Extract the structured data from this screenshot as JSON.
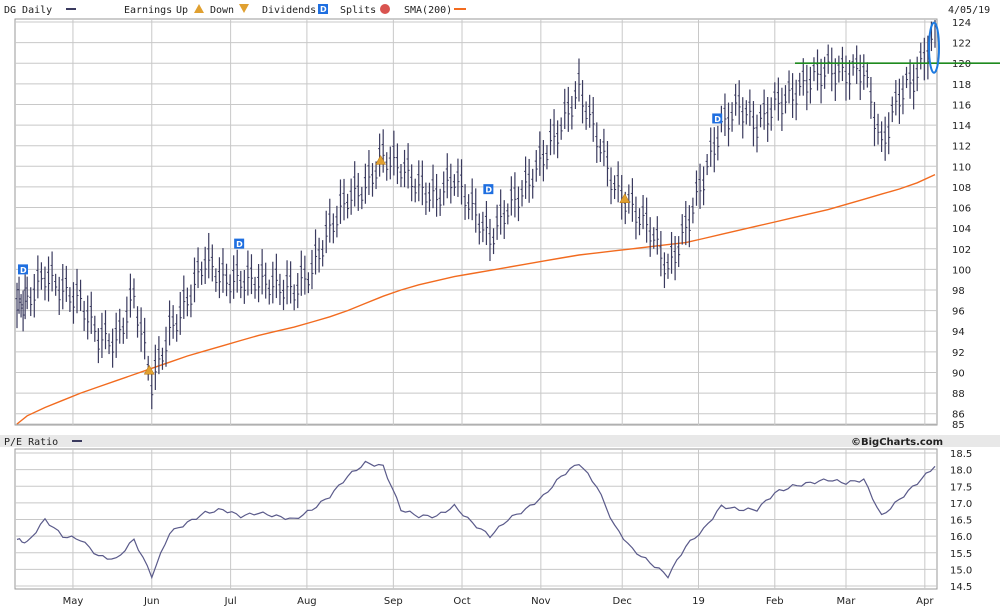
{
  "header": {
    "title": "DG Daily",
    "earnings_label": "Earnings",
    "up_label": "Up",
    "down_label": "Down",
    "dividends_label": "Dividends",
    "splits_label": "Splits",
    "sma_label": "SMA(200)",
    "date": "4/05/19"
  },
  "pe_panel": {
    "title": "P/E Ratio",
    "brand": "©BigCharts.com"
  },
  "colors": {
    "price": "#3a3a5e",
    "sma": "#f26b1f",
    "pe": "#5a5a8a",
    "grid": "#c8c8c8",
    "resistance": "#1f8a1f",
    "highlight": "#1e7ae0",
    "dividend": "#1f6fe0",
    "earnings": "#e0a030",
    "splits": "#d9534f",
    "border": "#999999"
  },
  "chart_data": [
    {
      "type": "ohlc",
      "title": "DG Daily",
      "x": [
        "2018-04-09",
        "2018-04-13",
        "2018-04-20",
        "2018-04-27",
        "2018-05-04",
        "2018-05-11",
        "2018-05-18",
        "2018-05-25",
        "2018-06-01",
        "2018-06-08",
        "2018-06-15",
        "2018-06-22",
        "2018-06-29",
        "2018-07-06",
        "2018-07-13",
        "2018-07-20",
        "2018-07-27",
        "2018-08-03",
        "2018-08-10",
        "2018-08-17",
        "2018-08-24",
        "2018-08-31",
        "2018-09-07",
        "2018-09-14",
        "2018-09-21",
        "2018-09-28",
        "2018-10-05",
        "2018-10-12",
        "2018-10-19",
        "2018-10-26",
        "2018-11-02",
        "2018-11-09",
        "2018-11-16",
        "2018-11-23",
        "2018-11-30",
        "2018-12-07",
        "2018-12-14",
        "2018-12-21",
        "2018-12-28",
        "2019-01-04",
        "2019-01-11",
        "2019-01-18",
        "2019-01-25",
        "2019-02-01",
        "2019-02-08",
        "2019-02-15",
        "2019-02-22",
        "2019-03-01",
        "2019-03-08",
        "2019-03-15",
        "2019-03-22",
        "2019-03-29",
        "2019-04-05"
      ],
      "series": [
        {
          "values": [
            96.5,
            97.0,
            99.5,
            98.0,
            97.0,
            93.5,
            93.0,
            97.5,
            89.0,
            94.0,
            97.0,
            101.0,
            99.0,
            99.0,
            99.0,
            98.5,
            98.0,
            100.0,
            104.0,
            107.0,
            108.0,
            111.0,
            110.0,
            108.0,
            107.0,
            109.0,
            106.0,
            103.0,
            106.0,
            108.0,
            111.0,
            114.0,
            117.5,
            113.0,
            108.0,
            106.0,
            104.0,
            100.0,
            104.0,
            109.0,
            114.0,
            116.0,
            114.0,
            116.0,
            117.0,
            118.5,
            119.5,
            119.0,
            119.5,
            112.0,
            117.0,
            119.0,
            123.0
          ]
        },
        {
          "name": "SMA(200)",
          "values": [
            85.0,
            85.8,
            86.6,
            87.3,
            88.0,
            88.6,
            89.2,
            89.8,
            90.4,
            91.0,
            91.6,
            92.1,
            92.6,
            93.1,
            93.6,
            94.0,
            94.4,
            94.9,
            95.4,
            96.0,
            96.7,
            97.4,
            98.0,
            98.5,
            98.9,
            99.3,
            99.6,
            99.9,
            100.2,
            100.5,
            100.8,
            101.1,
            101.4,
            101.6,
            101.8,
            102.0,
            102.2,
            102.4,
            102.6,
            103.0,
            103.4,
            103.8,
            104.2,
            104.6,
            105.0,
            105.4,
            105.8,
            106.3,
            106.8,
            107.3,
            107.8,
            108.4,
            109.2
          ]
        }
      ],
      "ylim": [
        85,
        124
      ],
      "yticks": [
        85,
        86,
        88,
        90,
        92,
        94,
        96,
        98,
        100,
        102,
        104,
        106,
        108,
        110,
        112,
        114,
        116,
        118,
        120,
        122,
        124
      ],
      "dividends_x": [
        "2018-04-09",
        "2018-07-03",
        "2018-10-09",
        "2019-01-07"
      ],
      "earnings_x": [
        "2018-05-31",
        "2018-08-30",
        "2018-12-04"
      ],
      "resistance": 120
    },
    {
      "type": "line",
      "title": "P/E Ratio",
      "x": [
        "2018-04-09",
        "2018-04-13",
        "2018-04-20",
        "2018-04-27",
        "2018-05-04",
        "2018-05-11",
        "2018-05-18",
        "2018-05-25",
        "2018-06-01",
        "2018-06-08",
        "2018-06-15",
        "2018-06-22",
        "2018-06-29",
        "2018-07-06",
        "2018-07-13",
        "2018-07-20",
        "2018-07-27",
        "2018-08-03",
        "2018-08-10",
        "2018-08-17",
        "2018-08-24",
        "2018-08-31",
        "2018-09-07",
        "2018-09-14",
        "2018-09-21",
        "2018-09-28",
        "2018-10-05",
        "2018-10-12",
        "2018-10-19",
        "2018-10-26",
        "2018-11-02",
        "2018-11-09",
        "2018-11-16",
        "2018-11-23",
        "2018-11-30",
        "2018-12-07",
        "2018-12-14",
        "2018-12-21",
        "2018-12-28",
        "2019-01-04",
        "2019-01-11",
        "2019-01-18",
        "2019-01-25",
        "2019-02-01",
        "2019-02-08",
        "2019-02-15",
        "2019-02-22",
        "2019-03-01",
        "2019-03-08",
        "2019-03-15",
        "2019-03-22",
        "2019-03-29",
        "2019-04-05"
      ],
      "series": [
        {
          "values": [
            15.9,
            15.8,
            16.5,
            16.0,
            15.9,
            15.4,
            15.3,
            15.9,
            14.8,
            16.1,
            16.4,
            16.7,
            16.8,
            16.6,
            16.7,
            16.6,
            16.5,
            16.8,
            17.2,
            17.8,
            18.2,
            18.1,
            16.8,
            16.6,
            16.6,
            16.9,
            16.4,
            16.0,
            16.5,
            16.8,
            17.2,
            17.8,
            18.2,
            17.5,
            16.3,
            15.6,
            15.2,
            14.8,
            15.7,
            16.2,
            16.9,
            16.8,
            16.8,
            17.3,
            17.5,
            17.6,
            17.7,
            17.6,
            17.7,
            16.6,
            17.1,
            17.6,
            18.1
          ]
        }
      ],
      "ylim": [
        14.5,
        18.5
      ],
      "yticks": [
        14.5,
        15.0,
        15.5,
        16.0,
        16.5,
        17.0,
        17.5,
        18.0,
        18.5
      ]
    }
  ],
  "x_axis": {
    "month_labels": [
      {
        "date": "2018-05-01",
        "label": "May"
      },
      {
        "date": "2018-06-01",
        "label": "Jun"
      },
      {
        "date": "2018-07-02",
        "label": "Jul"
      },
      {
        "date": "2018-08-01",
        "label": "Aug"
      },
      {
        "date": "2018-09-04",
        "label": "Sep"
      },
      {
        "date": "2018-10-01",
        "label": "Oct"
      },
      {
        "date": "2018-11-01",
        "label": "Nov"
      },
      {
        "date": "2018-12-03",
        "label": "Dec"
      },
      {
        "date": "2019-01-02",
        "label": "19"
      },
      {
        "date": "2019-02-01",
        "label": "Feb"
      },
      {
        "date": "2019-03-01",
        "label": "Mar"
      },
      {
        "date": "2019-04-01",
        "label": "Apr"
      }
    ]
  }
}
